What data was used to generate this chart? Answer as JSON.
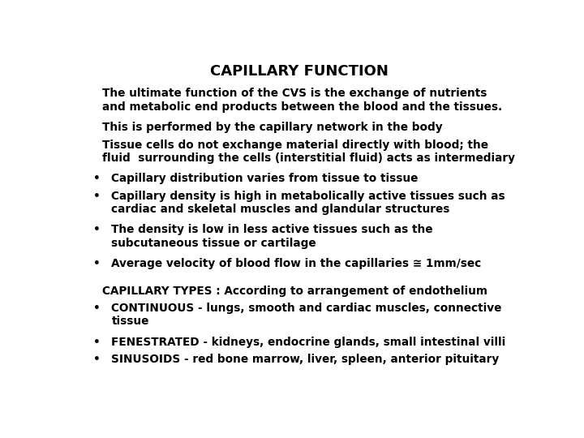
{
  "title": "CAPILLARY FUNCTION",
  "background_color": "#ffffff",
  "text_color": "#000000",
  "title_fontsize": 13,
  "body_fontsize": 9.8,
  "paragraphs": [
    {
      "text": "The ultimate function of the CVS is the exchange of nutrients\nand metabolic end products between the blood and the tissues.",
      "bullet": false,
      "bold": true,
      "lines": 2
    },
    {
      "text": "This is performed by the capillary network in the body",
      "bullet": false,
      "bold": true,
      "lines": 1
    },
    {
      "text": "Tissue cells do not exchange material directly with blood; the\nfluid  surrounding the cells (interstitial fluid) acts as intermediary",
      "bullet": false,
      "bold": true,
      "lines": 2
    },
    {
      "text": "Capillary distribution varies from tissue to tissue",
      "bullet": true,
      "bold": true,
      "lines": 1
    },
    {
      "text": "Capillary density is high in metabolically active tissues such as\ncardiac and skeletal muscles and glandular structures",
      "bullet": true,
      "bold": true,
      "lines": 2
    },
    {
      "text": "The density is low in less active tissues such as the\nsubcutaneous tissue or cartilage",
      "bullet": true,
      "bold": true,
      "lines": 2
    },
    {
      "text": "Average velocity of blood flow in the capillaries ≅ 1mm/sec",
      "bullet": true,
      "bold": true,
      "lines": 1
    },
    {
      "text": "",
      "bullet": false,
      "bold": false,
      "lines": 0
    },
    {
      "text": "CAPILLARY TYPES : According to arrangement of endothelium",
      "bullet": false,
      "bold": true,
      "lines": 1
    },
    {
      "text": "CONTINUOUS - lungs, smooth and cardiac muscles, connective\ntissue",
      "bullet": true,
      "bold": true,
      "lines": 2
    },
    {
      "text": "FENESTRATED - kidneys, endocrine glands, small intestinal villi",
      "bullet": true,
      "bold": true,
      "lines": 1
    },
    {
      "text": "SINUSOIDS - red bone marrow, liver, spleen, anterior pituitary",
      "bullet": true,
      "bold": true,
      "lines": 1
    }
  ]
}
